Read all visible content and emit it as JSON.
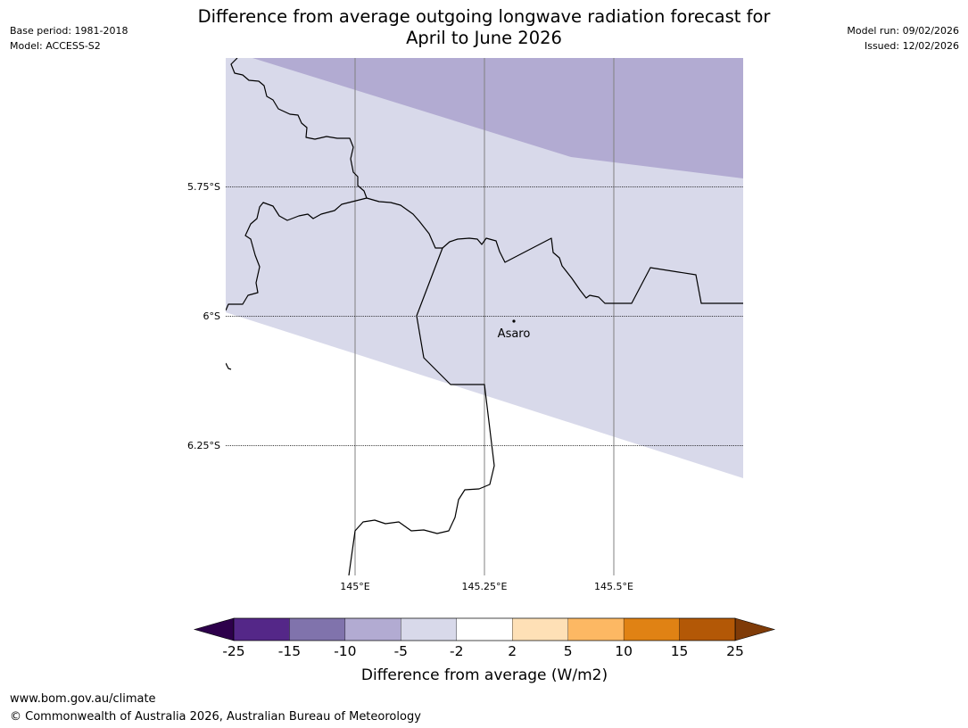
{
  "header": {
    "title_line1": "Difference from average outgoing longwave radiation forecast for",
    "title_line2": "April to June 2026",
    "base_period": "Base period: 1981-2018",
    "model": "Model: ACCESS-S2",
    "model_run": "Model run: 09/02/2026",
    "issued": "Issued: 12/02/2026"
  },
  "map": {
    "lat_labels": [
      "5.75°S",
      "6°S",
      "6.25°S"
    ],
    "lon_labels": [
      "145°E",
      "145.25°E",
      "145.5°E"
    ],
    "place": {
      "name": "Asaro"
    },
    "colors": {
      "band_-10_-5": "#b2abd2",
      "band_-5_-2": "#d8d9ea",
      "border": "#000000",
      "meridian": "#808080"
    }
  },
  "colorbar": {
    "label": "Difference from average (W/m2)",
    "ticks": [
      "-25",
      "-15",
      "-10",
      "-5",
      "-2",
      "2",
      "5",
      "10",
      "15",
      "25"
    ],
    "colors": [
      "#542788",
      "#8073ac",
      "#b2abd2",
      "#d8d9ea",
      "#ffffff",
      "#fee0b6",
      "#fdb863",
      "#e08214",
      "#b35806"
    ],
    "extend_low_color": "#2d004b",
    "extend_high_color": "#7f3b08"
  },
  "footer": {
    "url": "www.bom.gov.au/climate",
    "copyright": "© Commonwealth of Australia 2026, Australian Bureau of Meteorology"
  }
}
